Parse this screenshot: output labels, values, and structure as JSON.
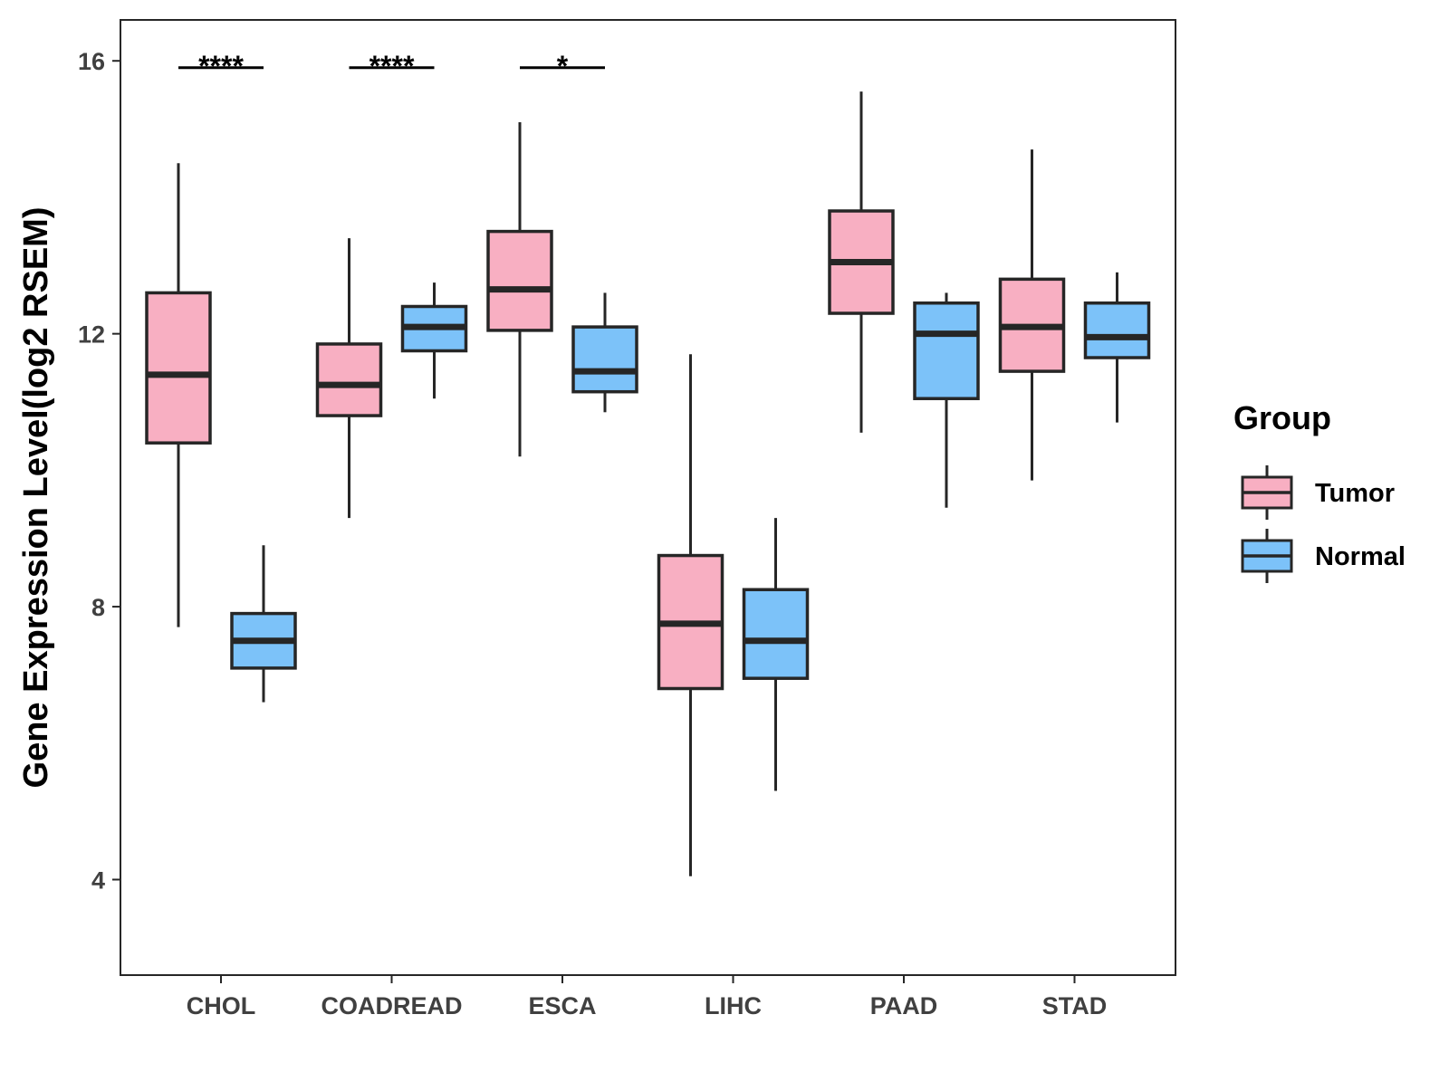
{
  "chart_data": {
    "type": "boxplot",
    "title": "",
    "xlabel": "",
    "ylabel": "Gene Expression Level(log2 RSEM)",
    "ylim": [
      2.6,
      16.6
    ],
    "yticks": [
      4,
      8,
      12,
      16
    ],
    "grid": false,
    "categories": [
      "CHOL",
      "COADREAD",
      "ESCA",
      "LIHC",
      "PAAD",
      "STAD"
    ],
    "legend": {
      "title": "Group",
      "position": "right"
    },
    "series": [
      {
        "name": "Tumor",
        "color": "#f8afc2",
        "boxes": [
          {
            "min": 7.7,
            "q1": 10.4,
            "median": 11.4,
            "q3": 12.6,
            "max": 14.5
          },
          {
            "min": 9.3,
            "q1": 10.8,
            "median": 11.25,
            "q3": 11.85,
            "max": 13.4
          },
          {
            "min": 10.2,
            "q1": 12.05,
            "median": 12.65,
            "q3": 13.5,
            "max": 15.1
          },
          {
            "min": 4.05,
            "q1": 6.8,
            "median": 7.75,
            "q3": 8.75,
            "max": 11.7
          },
          {
            "min": 10.55,
            "q1": 12.3,
            "median": 13.05,
            "q3": 13.8,
            "max": 15.55
          },
          {
            "min": 9.85,
            "q1": 11.45,
            "median": 12.1,
            "q3": 12.8,
            "max": 14.7
          }
        ]
      },
      {
        "name": "Normal",
        "color": "#7cc2f9",
        "boxes": [
          {
            "min": 6.6,
            "q1": 7.1,
            "median": 7.5,
            "q3": 7.9,
            "max": 8.9
          },
          {
            "min": 11.05,
            "q1": 11.75,
            "median": 12.1,
            "q3": 12.4,
            "max": 12.75
          },
          {
            "min": 10.85,
            "q1": 11.15,
            "median": 11.45,
            "q3": 12.1,
            "max": 12.6
          },
          {
            "min": 5.3,
            "q1": 6.95,
            "median": 7.5,
            "q3": 8.25,
            "max": 9.3
          },
          {
            "min": 9.45,
            "q1": 11.05,
            "median": 12.0,
            "q3": 12.45,
            "max": 12.6
          },
          {
            "min": 10.7,
            "q1": 11.65,
            "median": 11.95,
            "q3": 12.45,
            "max": 12.9
          }
        ]
      }
    ],
    "significance": [
      {
        "category": "CHOL",
        "label": "****",
        "y": 15.9
      },
      {
        "category": "COADREAD",
        "label": "****",
        "y": 15.9
      },
      {
        "category": "ESCA",
        "label": "*",
        "y": 15.9
      }
    ]
  }
}
